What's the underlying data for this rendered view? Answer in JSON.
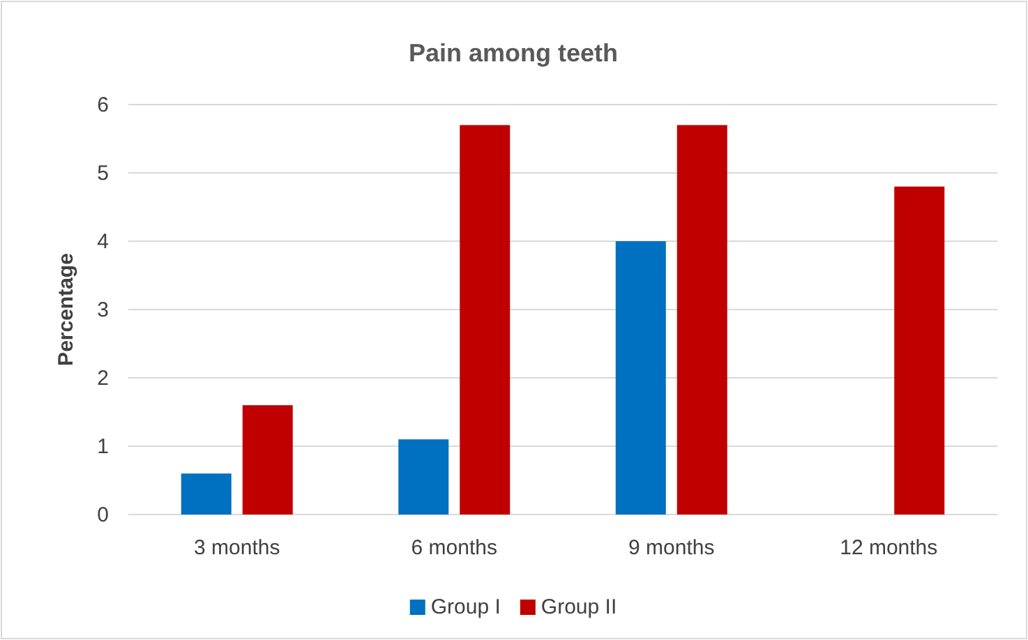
{
  "chart_data": {
    "type": "bar",
    "title": "Pain among teeth",
    "ylabel": "Percentage",
    "categories": [
      "3 months",
      "6 months",
      "9 months",
      "12 months"
    ],
    "series": [
      {
        "name": "Group I",
        "color": "#0070c0",
        "values": [
          0.6,
          1.1,
          4.0,
          0
        ]
      },
      {
        "name": "Group II",
        "color": "#c00000",
        "values": [
          1.6,
          5.7,
          5.7,
          4.8
        ]
      }
    ],
    "ylim": [
      0,
      6
    ],
    "yticks": [
      0,
      1,
      2,
      3,
      4,
      5,
      6
    ],
    "grid": "y",
    "legend": "bottom"
  }
}
